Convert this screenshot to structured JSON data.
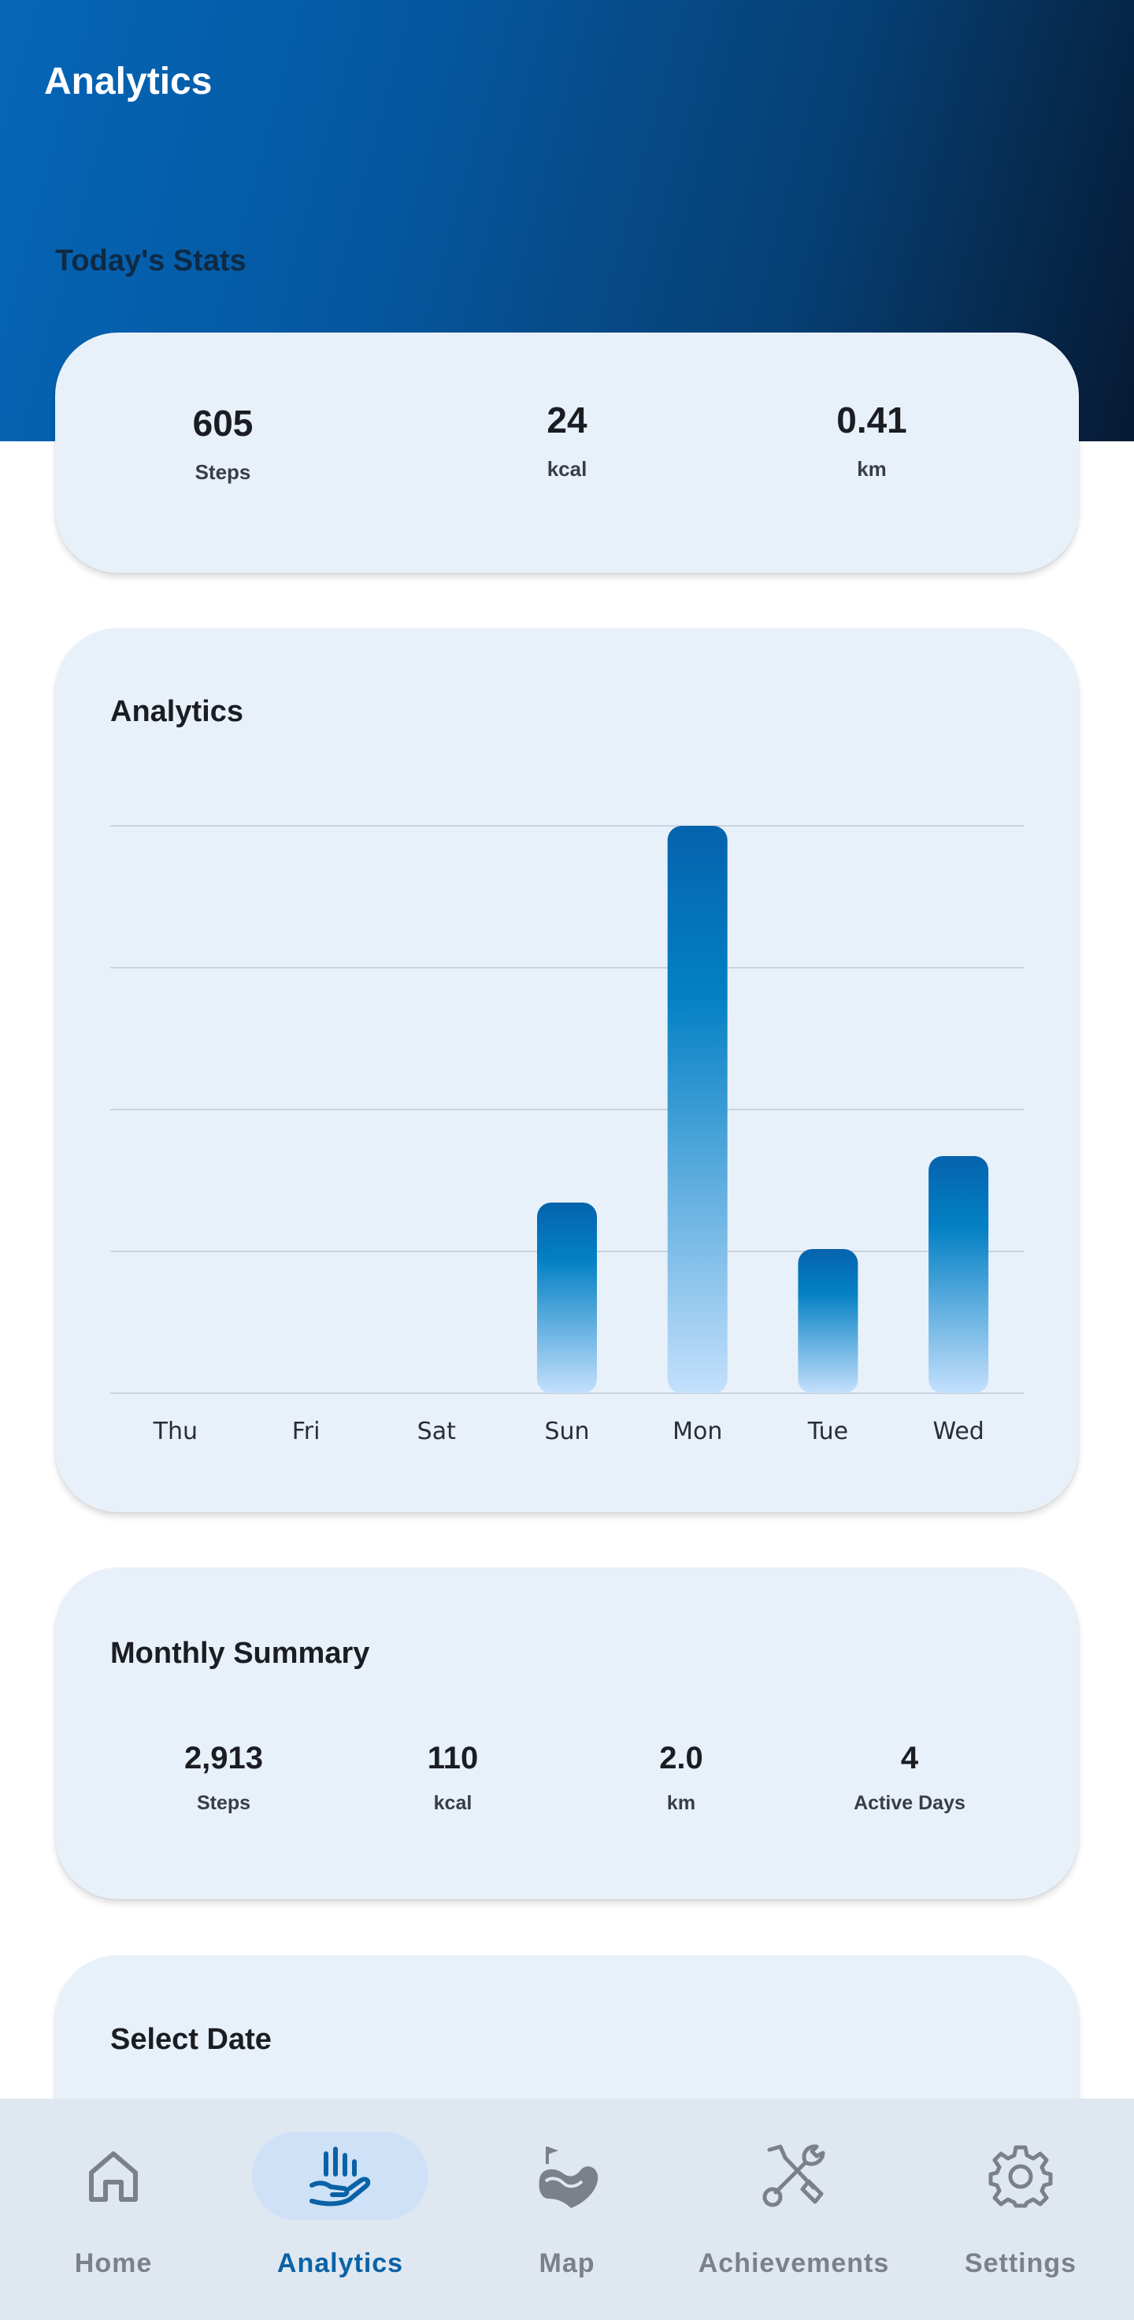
{
  "app": {
    "title": "Analytics"
  },
  "today": {
    "heading": "Today's Stats",
    "stats": [
      {
        "value": "605",
        "label": "Steps"
      },
      {
        "value": "24",
        "label": "kcal"
      },
      {
        "value": "0.41",
        "label": "km"
      }
    ]
  },
  "analytics": {
    "title": "Analytics"
  },
  "chart_data": {
    "type": "bar",
    "categories": [
      "Thu",
      "Fri",
      "Sat",
      "Sun",
      "Mon",
      "Tue",
      "Wed"
    ],
    "values": [
      0,
      0,
      0,
      82,
      244,
      62,
      102
    ],
    "ylim": [
      0,
      244
    ],
    "grid": true,
    "bar_gradient": [
      "#0563ad",
      "#0380c4",
      "#c4e0fc"
    ]
  },
  "monthly": {
    "title": "Monthly Summary",
    "stats": [
      {
        "value": "2,913",
        "label": "Steps"
      },
      {
        "value": "110",
        "label": "kcal"
      },
      {
        "value": "2.0",
        "label": "km"
      },
      {
        "value": "4",
        "label": "Active Days"
      }
    ]
  },
  "select_date": {
    "title": "Select Date"
  },
  "nav": {
    "items": [
      {
        "label": "Home",
        "icon": "home-icon",
        "active": false
      },
      {
        "label": "Analytics",
        "icon": "hand-analytics-icon",
        "active": true
      },
      {
        "label": "Map",
        "icon": "map-route-icon",
        "active": false
      },
      {
        "label": "Achievements",
        "icon": "tools-icon",
        "active": false
      },
      {
        "label": "Settings",
        "icon": "gear-icon",
        "active": false
      }
    ]
  },
  "colors": {
    "accent": "#0a62a6",
    "card_bg": "#e8f1fa",
    "nav_bg": "#dfe7f1"
  }
}
